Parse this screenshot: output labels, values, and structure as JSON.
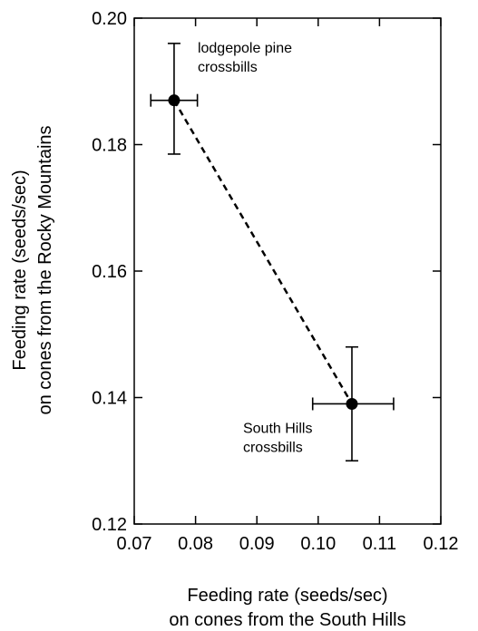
{
  "chart_data": {
    "type": "scatter",
    "xlabel": [
      "Feeding rate (seeds/sec)",
      "on cones from the South Hills"
    ],
    "ylabel": [
      "Feeding rate (seeds/sec)",
      "on cones from the Rocky Mountains"
    ],
    "xlim": [
      0.07,
      0.12
    ],
    "ylim": [
      0.12,
      0.2
    ],
    "x_ticks": [
      "0.07",
      "0.08",
      "0.09",
      "0.10",
      "0.11",
      "0.12"
    ],
    "y_ticks": [
      "0.12",
      "0.14",
      "0.16",
      "0.18",
      "0.20"
    ],
    "grid": false,
    "connector": "dashed",
    "points": [
      {
        "x": 0.0765,
        "y": 0.187,
        "x_err": [
          0.0727,
          0.0803
        ],
        "y_err": [
          0.1785,
          0.196
        ],
        "label": [
          "lodgepole pine",
          "crossbills"
        ]
      },
      {
        "x": 0.1055,
        "y": 0.139,
        "x_err": [
          0.0991,
          0.1123
        ],
        "y_err": [
          0.13,
          0.148
        ],
        "label": [
          "South Hills",
          "crossbills"
        ]
      }
    ]
  },
  "colors": {
    "ink": "#000000",
    "background": "#ffffff"
  }
}
